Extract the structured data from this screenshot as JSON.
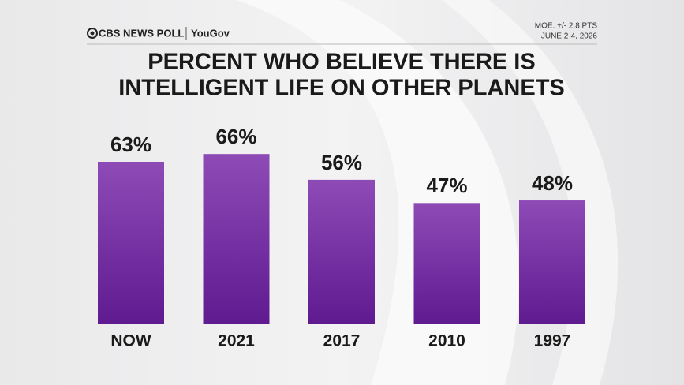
{
  "chart_data": {
    "type": "bar",
    "brand": "CBS NEWS POLL",
    "partner": "YouGov",
    "notes": [
      "MOE: +/- 2.8 PTS",
      "JUNE 2-4, 2026"
    ],
    "title": [
      "PERCENT WHO BELIEVE THERE IS",
      "INTELLIGENT LIFE ON OTHER PLANETS"
    ],
    "categories": [
      "NOW",
      "2021",
      "2017",
      "2010",
      "1997"
    ],
    "values": [
      63,
      66,
      56,
      47,
      48
    ],
    "value_labels": [
      "63%",
      "66%",
      "56%",
      "47%",
      "48%"
    ],
    "color": "#8e4bb6"
  }
}
